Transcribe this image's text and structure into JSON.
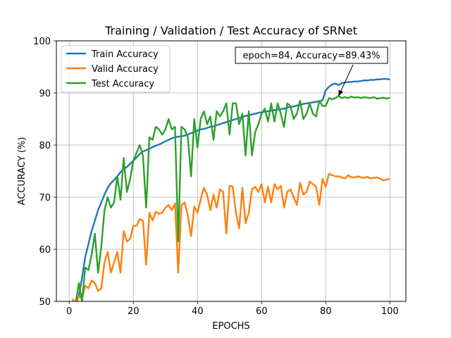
{
  "chart_data": {
    "type": "line",
    "title": "Training / Validation / Test Accuracy of SRNet",
    "xlabel": "EPOCHS",
    "ylabel": "ACCURACY (%)",
    "xlim": [
      -4,
      105
    ],
    "ylim": [
      50,
      100
    ],
    "xticks": [
      0,
      20,
      40,
      60,
      80,
      100
    ],
    "yticks": [
      50,
      60,
      70,
      80,
      90,
      100
    ],
    "grid": true,
    "legend_position": "top-left",
    "annotation": {
      "text": "epoch=84, Accuracy=89.43%",
      "x": 84,
      "y": 89.43
    },
    "series": [
      {
        "name": "Train Accuracy",
        "color": "#1f77b4",
        "x": [
          1,
          2,
          3,
          4,
          5,
          6,
          7,
          8,
          9,
          10,
          11,
          12,
          13,
          14,
          15,
          16,
          17,
          18,
          19,
          20,
          21,
          22,
          23,
          24,
          25,
          26,
          27,
          28,
          29,
          30,
          31,
          32,
          33,
          34,
          35,
          36,
          37,
          38,
          39,
          40,
          41,
          42,
          43,
          44,
          45,
          46,
          47,
          48,
          49,
          50,
          51,
          52,
          53,
          54,
          55,
          56,
          57,
          58,
          59,
          60,
          61,
          62,
          63,
          64,
          65,
          66,
          67,
          68,
          69,
          70,
          71,
          72,
          73,
          74,
          75,
          76,
          77,
          78,
          79,
          80,
          81,
          82,
          83,
          84,
          85,
          86,
          87,
          88,
          89,
          90,
          91,
          92,
          93,
          94,
          95,
          96,
          97,
          98,
          99,
          100
        ],
        "values": [
          48.0,
          49.5,
          51.0,
          54.5,
          58.5,
          61.0,
          63.5,
          65.5,
          67.5,
          69.0,
          70.5,
          71.8,
          72.7,
          73.3,
          74.0,
          74.8,
          75.4,
          75.8,
          76.4,
          77.0,
          77.6,
          78.3,
          78.8,
          79.0,
          79.3,
          79.6,
          79.9,
          80.1,
          80.4,
          80.7,
          81.0,
          81.3,
          81.5,
          81.6,
          81.7,
          81.8,
          82.0,
          82.3,
          82.5,
          82.8,
          83.0,
          83.1,
          83.3,
          83.5,
          83.6,
          83.8,
          84.0,
          84.2,
          84.4,
          84.6,
          84.8,
          85.0,
          85.2,
          85.4,
          85.6,
          85.7,
          85.9,
          86.0,
          86.2,
          86.3,
          86.4,
          86.5,
          86.6,
          86.7,
          86.8,
          86.9,
          87.0,
          87.2,
          87.3,
          87.4,
          87.6,
          87.7,
          87.9,
          88.0,
          88.1,
          88.2,
          88.3,
          88.4,
          88.6,
          90.5,
          91.2,
          91.6,
          91.8,
          91.5,
          91.9,
          92.0,
          92.1,
          92.1,
          92.2,
          92.2,
          92.3,
          92.4,
          92.4,
          92.5,
          92.5,
          92.6,
          92.6,
          92.7,
          92.7,
          92.6
        ]
      },
      {
        "name": "Valid Accuracy",
        "color": "#ff7f0e",
        "x": [
          1,
          2,
          3,
          4,
          5,
          6,
          7,
          8,
          9,
          10,
          11,
          12,
          13,
          14,
          15,
          16,
          17,
          18,
          19,
          20,
          21,
          22,
          23,
          24,
          25,
          26,
          27,
          28,
          29,
          30,
          31,
          32,
          33,
          34,
          35,
          36,
          37,
          38,
          39,
          40,
          41,
          42,
          43,
          44,
          45,
          46,
          47,
          48,
          49,
          50,
          51,
          52,
          53,
          54,
          55,
          56,
          57,
          58,
          59,
          60,
          61,
          62,
          63,
          64,
          65,
          66,
          67,
          68,
          69,
          70,
          71,
          72,
          73,
          74,
          75,
          76,
          77,
          78,
          79,
          80,
          81,
          82,
          83,
          84,
          85,
          86,
          87,
          88,
          89,
          90,
          91,
          92,
          93,
          94,
          95,
          96,
          97,
          98,
          99,
          100
        ],
        "values": [
          50.5,
          49.5,
          51.0,
          50.5,
          53.0,
          52.5,
          54.0,
          53.5,
          52.0,
          52.5,
          57.5,
          59.5,
          55.5,
          57.5,
          59.5,
          55.5,
          63.5,
          61.5,
          62.0,
          64.5,
          64.5,
          65.8,
          65.5,
          57.0,
          67.0,
          65.5,
          67.2,
          66.8,
          67.0,
          68.0,
          68.5,
          67.5,
          68.8,
          55.5,
          68.5,
          69.0,
          66.5,
          62.5,
          68.2,
          67.0,
          69.5,
          71.8,
          70.5,
          67.5,
          70.5,
          68.0,
          71.5,
          71.0,
          63.0,
          72.2,
          72.0,
          67.0,
          64.0,
          71.8,
          65.0,
          67.0,
          71.5,
          72.0,
          71.0,
          72.5,
          69.0,
          72.0,
          69.0,
          72.5,
          71.5,
          72.2,
          68.0,
          71.0,
          71.5,
          70.0,
          68.5,
          72.8,
          70.5,
          71.0,
          73.0,
          72.5,
          72.0,
          68.5,
          73.5,
          72.0,
          74.5,
          74.2,
          74.0,
          74.0,
          73.8,
          73.6,
          74.2,
          73.8,
          73.8,
          74.0,
          73.8,
          73.7,
          73.9,
          73.6,
          73.7,
          73.8,
          73.5,
          73.2,
          73.4,
          73.5
        ]
      },
      {
        "name": "Test Accuracy",
        "color": "#2ca02c",
        "x": [
          1,
          2,
          3,
          4,
          5,
          6,
          7,
          8,
          9,
          10,
          11,
          12,
          13,
          14,
          15,
          16,
          17,
          18,
          19,
          20,
          21,
          22,
          23,
          24,
          25,
          26,
          27,
          28,
          29,
          30,
          31,
          32,
          33,
          34,
          35,
          36,
          37,
          38,
          39,
          40,
          41,
          42,
          43,
          44,
          45,
          46,
          47,
          48,
          49,
          50,
          51,
          52,
          53,
          54,
          55,
          56,
          57,
          58,
          59,
          60,
          61,
          62,
          63,
          64,
          65,
          66,
          67,
          68,
          69,
          70,
          71,
          72,
          73,
          74,
          75,
          76,
          77,
          78,
          79,
          80,
          81,
          82,
          83,
          84,
          85,
          86,
          87,
          88,
          89,
          90,
          91,
          92,
          93,
          94,
          95,
          96,
          97,
          98,
          99,
          100
        ],
        "values": [
          50.0,
          49.5,
          53.5,
          50.0,
          56.5,
          56.0,
          59.0,
          63.0,
          55.5,
          60.5,
          67.5,
          70.0,
          68.0,
          69.0,
          74.0,
          69.5,
          77.5,
          71.0,
          73.5,
          77.0,
          78.5,
          80.0,
          78.0,
          68.0,
          81.5,
          81.0,
          83.5,
          83.0,
          82.0,
          83.0,
          85.0,
          83.0,
          83.5,
          61.5,
          83.5,
          83.0,
          81.5,
          74.0,
          85.0,
          79.5,
          85.0,
          86.5,
          84.0,
          85.5,
          81.0,
          86.5,
          85.5,
          86.5,
          88.0,
          82.0,
          88.0,
          88.0,
          84.0,
          86.0,
          78.0,
          86.5,
          78.0,
          82.5,
          84.0,
          86.0,
          87.0,
          84.5,
          88.0,
          84.5,
          88.0,
          86.0,
          83.5,
          88.0,
          87.5,
          85.0,
          86.0,
          88.5,
          85.0,
          86.0,
          88.0,
          86.0,
          85.5,
          88.5,
          87.5,
          87.5,
          89.0,
          88.8,
          89.0,
          89.43,
          89.0,
          89.2,
          89.0,
          89.3,
          89.1,
          89.2,
          89.0,
          89.2,
          89.1,
          89.0,
          89.2,
          88.9,
          89.0,
          89.1,
          88.9,
          89.1
        ]
      }
    ]
  }
}
